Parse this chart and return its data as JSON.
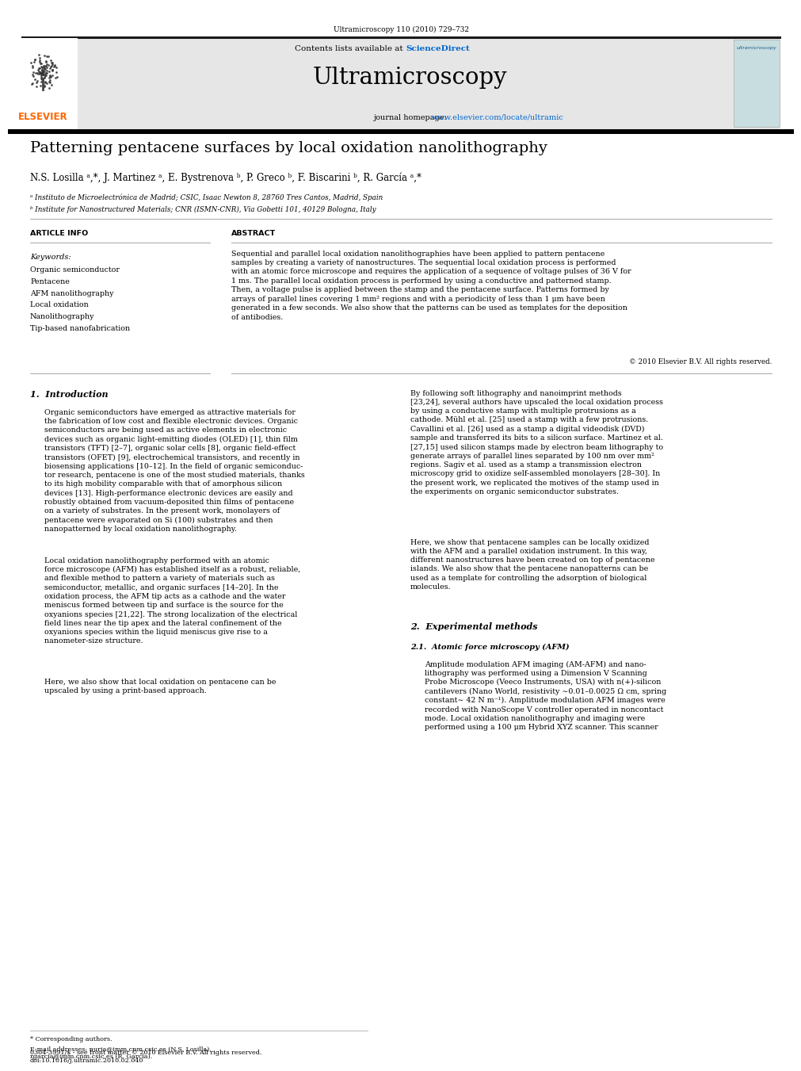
{
  "bg_color": "#ffffff",
  "page_width": 9.92,
  "page_height": 13.23,
  "journal_ref": "Ultramicroscopy 110 (2010) 729–732",
  "header_bg": "#e6e6e6",
  "contents_text": "Contents lists available at ",
  "sciencedirect_text": "ScienceDirect",
  "sciencedirect_color": "#0066cc",
  "journal_title": "Ultramicroscopy",
  "journal_url_color": "#0066cc",
  "paper_title": "Patterning pentacene surfaces by local oxidation nanolithography",
  "authors": "N.S. Losilla ᵃ,*, J. Martinez ᵃ, E. Bystrenova ᵇ, P. Greco ᵇ, F. Biscarini ᵇ, R. García ᵃ,*",
  "affil_a": "ᵃ Instituto de Microelectrónica de Madrid; CSIC, Isaac Newton 8, 28760 Tres Cantos, Madrid, Spain",
  "affil_b": "ᵇ Institute for Nanostructured Materials; CNR (ISMN-CNR), Via Gobetti 101, 40129 Bologna, Italy",
  "article_info_label": "ARTICLE INFO",
  "abstract_label": "ABSTRACT",
  "keywords_label": "Keywords:",
  "keywords": [
    "Organic semiconductor",
    "Pentacene",
    "AFM nanolithography",
    "Local oxidation",
    "Nanolithography",
    "Tip-based nanofabrication"
  ],
  "abstract_text": "Sequential and parallel local oxidation nanolithographies have been applied to pattern pentacene\nsamples by creating a variety of nanostructures. The sequential local oxidation process is performed\nwith an atomic force microscope and requires the application of a sequence of voltage pulses of 36 V for\n1 ms. The parallel local oxidation process is performed by using a conductive and patterned stamp.\nThen, a voltage pulse is applied between the stamp and the pentacene surface. Patterns formed by\narrays of parallel lines covering 1 mm² regions and with a periodicity of less than 1 μm have been\ngenerated in a few seconds. We also show that the patterns can be used as templates for the deposition\nof antibodies.",
  "copyright": "© 2010 Elsevier B.V. All rights reserved.",
  "section1_title": "1.  Introduction",
  "section1_col1_p1": "Organic semiconductors have emerged as attractive materials for\nthe fabrication of low cost and flexible electronic devices. Organic\nsemiconductors are being used as active elements in electronic\ndevices such as organic light-emitting diodes (OLED) [1], thin film\ntransistors (TFT) [2–7], organic solar cells [8], organic field-effect\ntransistors (OFET) [9], electrochemical transistors, and recently in\nbiosensing applications [10–12]. In the field of organic semiconduc-\ntor research, pentacene is one of the most studied materials, thanks\nto its high mobility comparable with that of amorphous silicon\ndevices [13]. High-performance electronic devices are easily and\nrobustly obtained from vacuum-deposited thin films of pentacene\non a variety of substrates. In the present work, monolayers of\npentacene were evaporated on Si (100) substrates and then\nnanopatterned by local oxidation nanolithography.",
  "section1_col1_p2": "Local oxidation nanolithography performed with an atomic\nforce microscope (AFM) has established itself as a robust, reliable,\nand flexible method to pattern a variety of materials such as\nsemiconductor, metallic, and organic surfaces [14–20]. In the\noxidation process, the AFM tip acts as a cathode and the water\nmeniscus formed between tip and surface is the source for the\noxyanions species [21,22]. The strong localization of the electrical\nfield lines near the tip apex and the lateral confinement of the\noxyanions species within the liquid meniscus give rise to a\nnanometer-size structure.",
  "section1_col1_p3": "Here, we also show that local oxidation on pentacene can be\nupscaled by using a print-based approach.",
  "section1_col2_p1": "By following soft lithography and nanoimprint methods\n[23,24], several authors have upscaled the local oxidation process\nby using a conductive stamp with multiple protrusions as a\ncathode. Mühl et al. [25] used a stamp with a few protrusions.\nCavallini et al. [26] used as a stamp a digital videodisk (DVD)\nsample and transferred its bits to a silicon surface. Martinez et al.\n[27,15] used silicon stamps made by electron beam lithography to\ngenerate arrays of parallel lines separated by 100 nm over mm²\nregions. Sagiv et al. used as a stamp a transmission electron\nmicroscopy grid to oxidize self-assembled monolayers [28–30]. In\nthe present work, we replicated the motives of the stamp used in\nthe experiments on organic semiconductor substrates.",
  "section1_col2_p2": "Here, we show that pentacene samples can be locally oxidized\nwith the AFM and a parallel oxidation instrument. In this way,\ndifferent nanostructures have been created on top of pentacene\nislands. We also show that the pentacene nanopatterns can be\nused as a template for controlling the adsorption of biological\nmolecules.",
  "section2_title": "2.  Experimental methods",
  "section21_title": "2.1.  Atomic force microscopy (AFM)",
  "section21_text": "Amplitude modulation AFM imaging (AM-AFM) and nano-\nlithography was performed using a Dimension V Scanning\nProbe Microscope (Veeco Instruments, USA) with n(+)-silicon\ncantilevers (Nano World, resistivity ∼0.01–0.0025 Ω cm, spring\nconstant∼ 42 N m⁻¹). Amplitude modulation AFM images were\nrecorded with NanoScope V controller operated in noncontact\nmode. Local oxidation nanolithography and imaging were\nperformed using a 100 μm Hybrid XYZ scanner. This scanner",
  "footer_note": "* Corresponding authors.",
  "footer_email": "E-mail addresses: nuria@imm.cnm.csic.es (N.S. Losilla),\nrgarcia@imm.cnm.csic.es (R. García).",
  "footer_copyright": "0304-3991/$ - see front matter © 2010 Elsevier B.V. All rights reserved.\ndoi:10.1016/j.ultramic.2010.02.040",
  "elsevier_color": "#ff6600",
  "thick_rule_color": "#1a1a1a"
}
